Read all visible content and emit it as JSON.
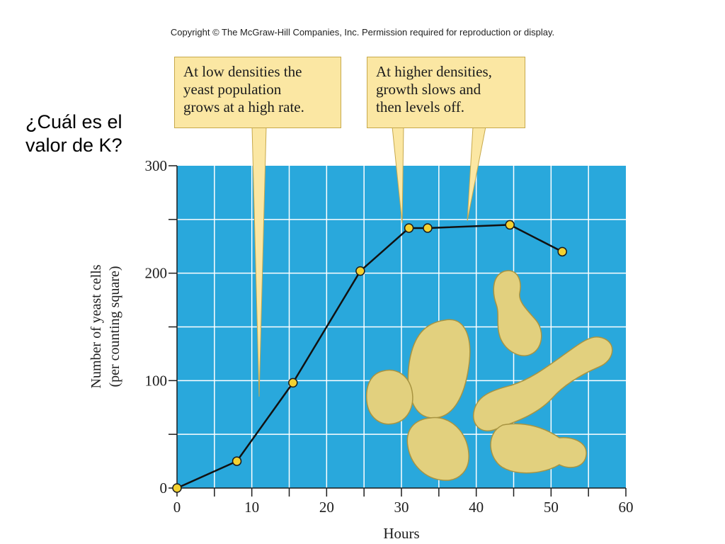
{
  "copyright": "Copyright © The McGraw-Hill Companies, Inc. Permission required for reproduction or display.",
  "question": "¿Cuál es el\nvalor de K?",
  "callouts": [
    {
      "text": "At low densities the\nyeast population\ngrows at a high rate."
    },
    {
      "text": "At higher densities,\ngrowth slows and\nthen levels off."
    }
  ],
  "colors": {
    "plot_background": "#29a8dc",
    "grid": "#ffffff",
    "line": "#111111",
    "marker_fill": "#f3d130",
    "callout_fill": "#fbe7a3",
    "yeast_cell": "#e2d07e"
  },
  "chart_data": {
    "type": "line",
    "x": [
      0,
      8,
      15.5,
      24.5,
      31,
      33.5,
      44.5,
      51.5
    ],
    "y": [
      0,
      25,
      98,
      202,
      242,
      242,
      245,
      220
    ],
    "xlabel": "Hours",
    "ylabel_lines": [
      "Number of yeast cells",
      "(per counting square)"
    ],
    "xlim": [
      0,
      60
    ],
    "ylim": [
      0,
      300
    ],
    "x_ticks": [
      0,
      10,
      20,
      30,
      40,
      50,
      60
    ],
    "y_ticks": [
      0,
      100,
      200,
      300
    ],
    "grid": true,
    "illustration": "yeast-cells"
  }
}
